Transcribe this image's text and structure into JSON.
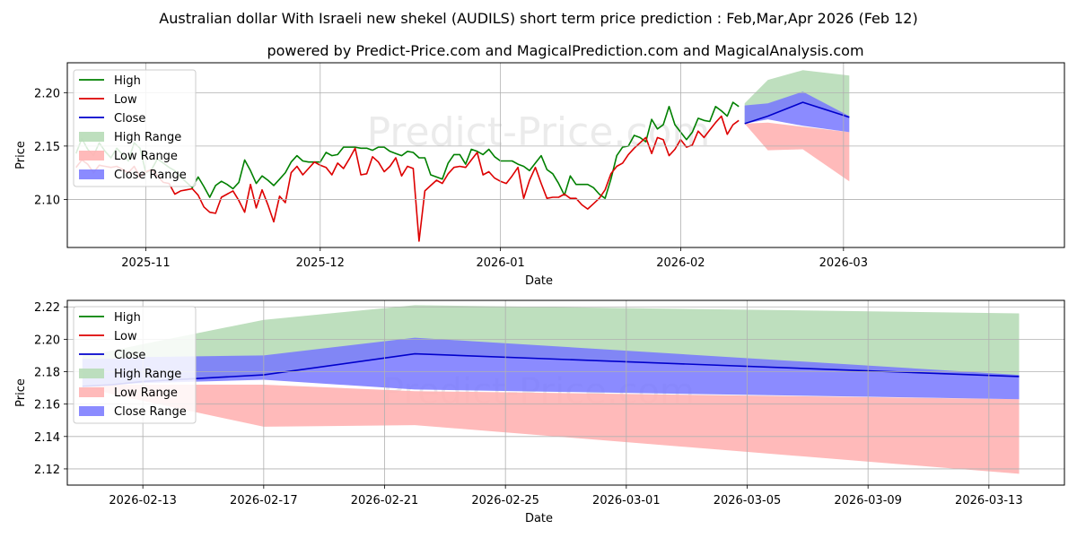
{
  "title": "Australian dollar With Israeli new shekel (AUDILS) short term price prediction : Feb,Mar,Apr 2026 (Feb 12)",
  "subtitle": "powered by Predict-Price.com and MagicalPrediction.com and MagicalAnalysis.com",
  "watermark": "Predict-Price.com",
  "colors": {
    "high": "#008000",
    "low": "#dd0000",
    "close": "#0000cc",
    "high_range": "#b7dcb7",
    "low_range": "#ffb3b3",
    "close_range": "#7777ff"
  },
  "chart_data": [
    {
      "type": "line",
      "xlabel": "Date",
      "ylabel": "Price",
      "x_unit": "day index, 0 = 2025-10-20",
      "xlim": [
        -1.5,
        170
      ],
      "ylim": [
        2.055,
        2.228
      ],
      "grid": true,
      "legend_position": "top-left",
      "legend": [
        "High",
        "Low",
        "Close",
        "High Range",
        "Low Range",
        "Close Range"
      ],
      "xticks": [
        {
          "value": 12,
          "label": "2025-11"
        },
        {
          "value": 42,
          "label": "2025-12"
        },
        {
          "value": 73,
          "label": "2026-01"
        },
        {
          "value": 104,
          "label": "2026-02"
        },
        {
          "value": 132,
          "label": "2026-03"
        }
      ],
      "yticks": [
        {
          "value": 2.1,
          "label": "2.10"
        },
        {
          "value": 2.15,
          "label": "2.15"
        },
        {
          "value": 2.2,
          "label": "2.20"
        }
      ],
      "history": {
        "x": [
          0,
          1,
          2,
          3,
          4,
          5,
          6,
          7,
          8,
          9,
          10,
          11,
          12,
          13,
          14,
          15,
          16,
          17,
          18,
          19,
          20,
          21,
          22,
          23,
          24,
          25,
          26,
          27,
          28,
          29,
          30,
          31,
          32,
          33,
          34,
          35,
          36,
          37,
          38,
          39,
          40,
          41,
          42,
          43,
          44,
          45,
          46,
          47,
          48,
          49,
          50,
          51,
          52,
          53,
          54,
          55,
          56,
          57,
          58,
          59,
          60,
          61,
          62,
          63,
          64,
          65,
          66,
          67,
          68,
          69,
          70,
          71,
          72,
          73,
          74,
          75,
          76,
          77,
          78,
          79,
          80,
          81,
          82,
          83,
          84,
          85,
          86,
          87,
          88,
          89,
          90,
          91,
          92,
          93,
          94,
          95,
          96,
          97,
          98,
          99,
          100,
          101,
          102,
          103,
          104,
          105,
          106,
          107,
          108,
          109,
          110,
          111,
          112,
          113,
          114
        ],
        "series": [
          {
            "name": "High",
            "values": [
              2.143,
              2.157,
              2.147,
              2.141,
              2.153,
              2.145,
              2.139,
              2.148,
              2.142,
              2.136,
              2.153,
              2.148,
              2.125,
              2.128,
              2.138,
              2.134,
              2.13,
              2.127,
              2.121,
              2.116,
              2.111,
              2.121,
              2.112,
              2.102,
              2.113,
              2.117,
              2.114,
              2.11,
              2.116,
              2.137,
              2.127,
              2.115,
              2.122,
              2.118,
              2.113,
              2.119,
              2.125,
              2.135,
              2.141,
              2.136,
              2.135,
              2.135,
              2.135,
              2.144,
              2.141,
              2.142,
              2.149,
              2.149,
              2.149,
              2.148,
              2.148,
              2.146,
              2.149,
              2.149,
              2.145,
              2.143,
              2.141,
              2.145,
              2.144,
              2.139,
              2.139,
              2.123,
              2.121,
              2.119,
              2.134,
              2.142,
              2.142,
              2.133,
              2.147,
              2.145,
              2.142,
              2.147,
              2.14,
              2.136,
              2.136,
              2.136,
              2.133,
              2.131,
              2.127,
              2.134,
              2.141,
              2.128,
              2.124,
              2.115,
              2.104,
              2.122,
              2.114,
              2.114,
              2.114,
              2.111,
              2.105,
              2.101,
              2.119,
              2.141,
              2.149,
              2.15,
              2.16,
              2.158,
              2.154,
              2.175,
              2.166,
              2.17,
              2.187,
              2.17,
              2.163,
              2.156,
              2.163,
              2.176,
              2.174,
              2.173,
              2.187,
              2.183,
              2.178,
              2.191,
              2.187
            ]
          },
          {
            "name": "Low",
            "values": [
              2.13,
              2.137,
              2.133,
              2.125,
              2.132,
              2.131,
              2.13,
              2.131,
              2.128,
              2.125,
              2.131,
              2.121,
              2.126,
              2.128,
              2.122,
              2.116,
              2.115,
              2.105,
              2.108,
              2.109,
              2.11,
              2.104,
              2.093,
              2.088,
              2.087,
              2.102,
              2.105,
              2.108,
              2.099,
              2.088,
              2.114,
              2.092,
              2.109,
              2.095,
              2.079,
              2.103,
              2.097,
              2.125,
              2.131,
              2.123,
              2.129,
              2.135,
              2.132,
              2.13,
              2.123,
              2.134,
              2.129,
              2.138,
              2.148,
              2.123,
              2.124,
              2.14,
              2.135,
              2.126,
              2.131,
              2.139,
              2.122,
              2.131,
              2.129,
              2.061,
              2.108,
              2.113,
              2.118,
              2.115,
              2.124,
              2.13,
              2.131,
              2.13,
              2.137,
              2.144,
              2.123,
              2.126,
              2.12,
              2.117,
              2.115,
              2.122,
              2.13,
              2.101,
              2.118,
              2.13,
              2.115,
              2.101,
              2.102,
              2.102,
              2.105,
              2.101,
              2.101,
              2.095,
              2.091,
              2.096,
              2.101,
              2.109,
              2.124,
              2.131,
              2.134,
              2.142,
              2.148,
              2.153,
              2.158,
              2.143,
              2.158,
              2.156,
              2.141,
              2.147,
              2.156,
              2.149,
              2.151,
              2.164,
              2.158,
              2.165,
              2.172,
              2.178,
              2.161,
              2.17,
              2.174
            ]
          }
        ]
      },
      "forecast": {
        "x": [
          115,
          119,
          125,
          133
        ],
        "series": [
          {
            "name": "Close",
            "values": [
              2.171,
              2.178,
              2.191,
              2.177
            ]
          },
          {
            "name": "High Range",
            "upper": [
              2.19,
              2.212,
              2.221,
              2.216
            ],
            "lower": [
              2.171,
              2.178,
              2.191,
              2.177
            ]
          },
          {
            "name": "Low Range",
            "upper": [
              2.171,
              2.172,
              2.168,
              2.163
            ],
            "lower": [
              2.171,
              2.146,
              2.147,
              2.117
            ]
          },
          {
            "name": "Close Range",
            "upper": [
              2.188,
              2.19,
              2.201,
              2.178
            ],
            "lower": [
              2.171,
              2.175,
              2.169,
              2.163
            ]
          }
        ]
      }
    },
    {
      "type": "line",
      "xlabel": "Date",
      "ylabel": "Price",
      "x_unit": "day index, 0 = 2026-02-12",
      "xlim": [
        -1.5,
        31.5
      ],
      "ylim": [
        2.11,
        2.224
      ],
      "grid": true,
      "legend_position": "top-left",
      "legend": [
        "High",
        "Low",
        "Close",
        "High Range",
        "Low Range",
        "Close Range"
      ],
      "xticks": [
        {
          "value": 1,
          "label": "2026-02-13"
        },
        {
          "value": 5,
          "label": "2026-02-17"
        },
        {
          "value": 9,
          "label": "2026-02-21"
        },
        {
          "value": 13,
          "label": "2026-02-25"
        },
        {
          "value": 17,
          "label": "2026-03-01"
        },
        {
          "value": 21,
          "label": "2026-03-05"
        },
        {
          "value": 25,
          "label": "2026-03-09"
        },
        {
          "value": 29,
          "label": "2026-03-13"
        }
      ],
      "yticks": [
        {
          "value": 2.12,
          "label": "2.12"
        },
        {
          "value": 2.14,
          "label": "2.14"
        },
        {
          "value": 2.16,
          "label": "2.16"
        },
        {
          "value": 2.18,
          "label": "2.18"
        },
        {
          "value": 2.2,
          "label": "2.20"
        },
        {
          "value": 2.22,
          "label": "2.22"
        }
      ],
      "forecast": {
        "x": [
          -1,
          0,
          1,
          5,
          10,
          30
        ],
        "series": [
          {
            "name": "Close",
            "values": [
              2.171,
              2.172,
              2.174,
              2.178,
              2.191,
              2.177
            ]
          },
          {
            "name": "High Range",
            "upper": [
              2.19,
              2.193,
              2.197,
              2.212,
              2.221,
              2.216
            ],
            "lower": [
              2.171,
              2.172,
              2.174,
              2.178,
              2.191,
              2.177
            ]
          },
          {
            "name": "Low Range",
            "upper": [
              2.171,
              2.172,
              2.172,
              2.172,
              2.168,
              2.163
            ],
            "lower": [
              2.171,
              2.166,
              2.162,
              2.146,
              2.147,
              2.117
            ]
          },
          {
            "name": "Close Range",
            "upper": [
              2.188,
              2.188,
              2.189,
              2.19,
              2.201,
              2.178
            ],
            "lower": [
              2.171,
              2.172,
              2.173,
              2.175,
              2.169,
              2.163
            ]
          }
        ]
      }
    }
  ]
}
